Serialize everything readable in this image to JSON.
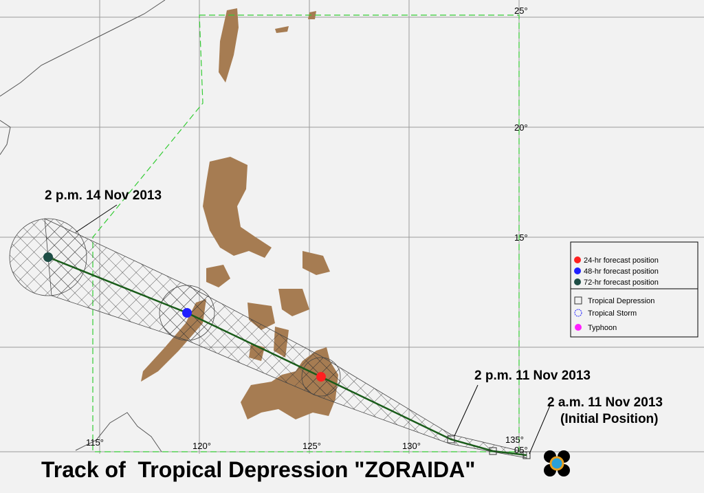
{
  "title": "Track of  Tropical Depression \"ZORAIDA\"",
  "annotations": [
    "2 p.m. 14 Nov 2013",
    "2 p.m. 11 Nov 2013",
    "2 a.m. 11 Nov 2013",
    "(Initial Position)"
  ],
  "lat_labels": [
    "25°",
    "20°",
    "15°",
    "05°"
  ],
  "lon_labels": [
    "115°",
    "120°",
    "125°",
    "130°",
    "135°"
  ],
  "legend": {
    "forecast": [
      "24-hr forecast position",
      "48-hr forecast position",
      "72-hr forecast position"
    ],
    "intensity": [
      "Tropical Depression",
      "Tropical Storm",
      "Typhoon"
    ]
  }
}
